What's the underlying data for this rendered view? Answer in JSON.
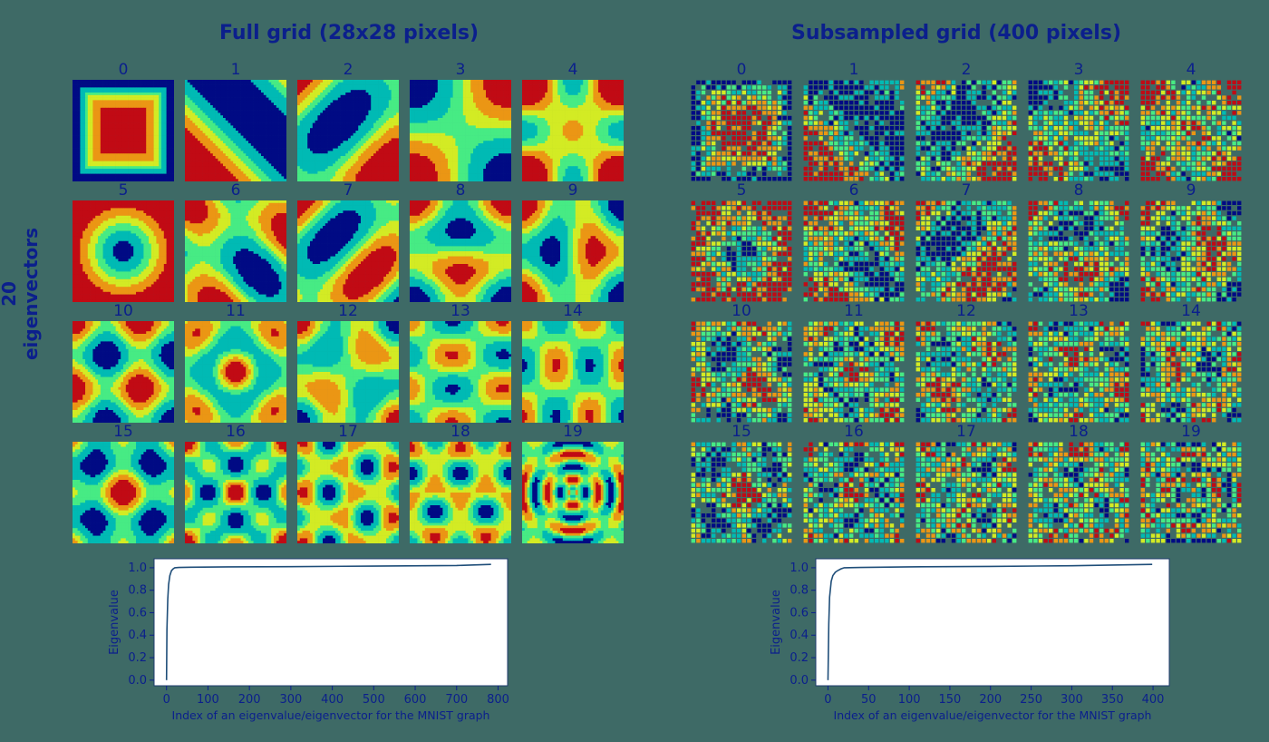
{
  "figure": {
    "side_label": "20 eigenvectors"
  },
  "chart_data": [
    {
      "type": "heatmap",
      "title": "Full grid (28x28 pixels)",
      "panel_titles": [
        "0",
        "1",
        "2",
        "3",
        "4",
        "5",
        "6",
        "7",
        "8",
        "9",
        "10",
        "11",
        "12",
        "13",
        "14",
        "15",
        "16",
        "17",
        "18",
        "19"
      ],
      "colormap": "jet",
      "grid_size": 28
    },
    {
      "type": "heatmap",
      "title": "Subsampled grid (400 pixels)",
      "panel_titles": [
        "0",
        "1",
        "2",
        "3",
        "4",
        "5",
        "6",
        "7",
        "8",
        "9",
        "10",
        "11",
        "12",
        "13",
        "14",
        "15",
        "16",
        "17",
        "18",
        "19"
      ],
      "colormap": "jet",
      "grid_size": 20
    },
    {
      "type": "line",
      "xlabel": "Index of an eigenvalue/eigenvector for the MNIST graph",
      "ylabel": "Eigenvalue",
      "xticks": [
        0,
        100,
        200,
        300,
        400,
        500,
        600,
        700,
        800
      ],
      "yticks": [
        0.0,
        0.2,
        0.4,
        0.6,
        0.8,
        1.0
      ],
      "xlim": [
        -30,
        823
      ],
      "ylim": [
        -0.05,
        1.08
      ],
      "x": [
        0,
        1,
        3,
        5,
        8,
        12,
        16,
        20,
        30,
        60,
        150,
        300,
        500,
        700,
        783
      ],
      "y": [
        0.0,
        0.45,
        0.72,
        0.85,
        0.93,
        0.975,
        0.99,
        1.0,
        1.003,
        1.005,
        1.008,
        1.01,
        1.015,
        1.02,
        1.03
      ],
      "line_color": "#1f4e79"
    },
    {
      "type": "line",
      "xlabel": "Index of an eigenvalue/eigenvector for the MNIST graph",
      "ylabel": "Eigenvalue",
      "xticks": [
        0,
        50,
        100,
        150,
        200,
        250,
        300,
        350,
        400
      ],
      "yticks": [
        0.0,
        0.2,
        0.4,
        0.6,
        0.8,
        1.0
      ],
      "xlim": [
        -15,
        420
      ],
      "ylim": [
        -0.05,
        1.08
      ],
      "x": [
        0,
        1,
        2,
        4,
        6,
        9,
        12,
        16,
        20,
        40,
        100,
        200,
        300,
        399
      ],
      "y": [
        0.0,
        0.5,
        0.74,
        0.88,
        0.93,
        0.96,
        0.975,
        0.99,
        1.0,
        1.003,
        1.008,
        1.012,
        1.018,
        1.03
      ],
      "line_color": "#1f4e79"
    }
  ]
}
